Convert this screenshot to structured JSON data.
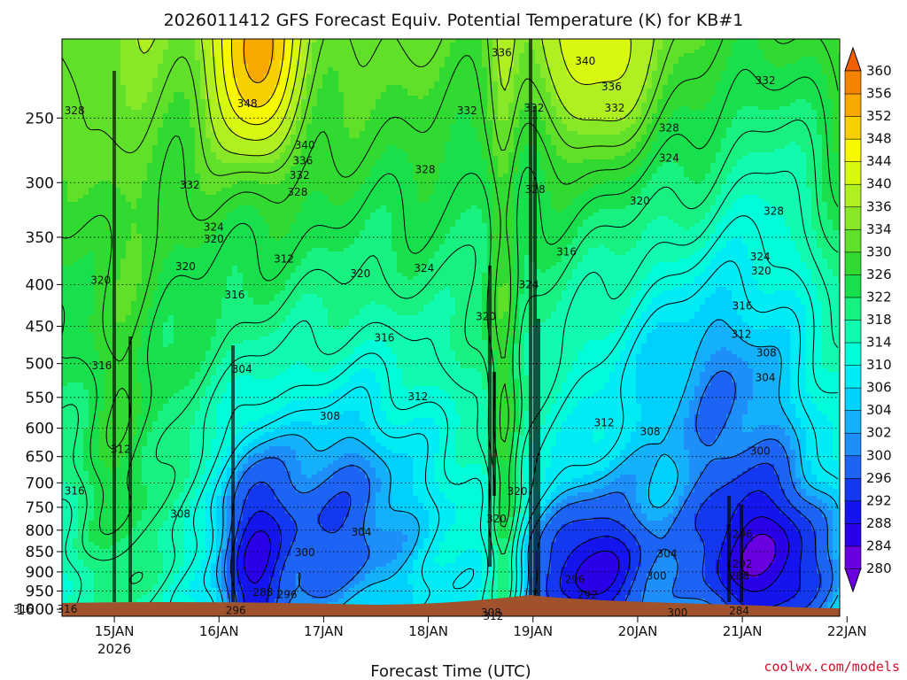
{
  "chart_data": {
    "type": "heatmap",
    "title": "2026011412 GFS Forecast Equiv. Potential Temperature (K) for KB#1",
    "xlabel": "Forecast Time (UTC)",
    "ylabel": "",
    "credit": "coolwx.com/models",
    "x_ticks": [
      {
        "label": "15JAN",
        "sub": "2026",
        "t": 1
      },
      {
        "label": "16JAN",
        "sub": "",
        "t": 2
      },
      {
        "label": "17JAN",
        "sub": "",
        "t": 3
      },
      {
        "label": "18JAN",
        "sub": "",
        "t": 4
      },
      {
        "label": "19JAN",
        "sub": "",
        "t": 5
      },
      {
        "label": "20JAN",
        "sub": "",
        "t": 6
      },
      {
        "label": "21JAN",
        "sub": "",
        "t": 7
      },
      {
        "label": "22JAN",
        "sub": "",
        "t": 8
      }
    ],
    "xlim": [
      0.5,
      7.93
    ],
    "y_ticks": [
      250,
      300,
      350,
      400,
      450,
      500,
      550,
      600,
      650,
      700,
      750,
      800,
      850,
      900,
      950,
      1000
    ],
    "ylim": [
      1020,
      200
    ],
    "y_scale": "log-pressure",
    "grid": "dotted",
    "colorbar": {
      "levels": [
        280,
        284,
        288,
        292,
        296,
        300,
        302,
        304,
        306,
        310,
        314,
        318,
        322,
        326,
        330,
        334,
        336,
        340,
        344,
        348,
        352,
        356,
        360
      ],
      "colors": [
        "#6a00e0",
        "#2a00e8",
        "#1414ee",
        "#1438f0",
        "#1e64f4",
        "#1e8ef8",
        "#14b0fa",
        "#00d0fc",
        "#00ecf4",
        "#00fcd8",
        "#10fab0",
        "#18f080",
        "#18e04c",
        "#30da30",
        "#60e028",
        "#88e828",
        "#b0f020",
        "#d8f810",
        "#f8f800",
        "#f8d000",
        "#f8a800",
        "#f48400",
        "#f06000"
      ]
    },
    "contour_labels": [
      {
        "v": "328",
        "t": 0.62,
        "p": 245
      },
      {
        "v": "348",
        "t": 2.27,
        "p": 240
      },
      {
        "v": "340",
        "t": 2.82,
        "p": 270
      },
      {
        "v": "336",
        "t": 2.8,
        "p": 282
      },
      {
        "v": "332",
        "t": 2.77,
        "p": 294
      },
      {
        "v": "328",
        "t": 2.75,
        "p": 308
      },
      {
        "v": "332",
        "t": 1.72,
        "p": 302
      },
      {
        "v": "324",
        "t": 1.95,
        "p": 340
      },
      {
        "v": "320",
        "t": 1.95,
        "p": 352
      },
      {
        "v": "320",
        "t": 1.68,
        "p": 380
      },
      {
        "v": "320",
        "t": 0.87,
        "p": 395
      },
      {
        "v": "312",
        "t": 2.62,
        "p": 372
      },
      {
        "v": "316",
        "t": 2.15,
        "p": 412
      },
      {
        "v": "320",
        "t": 3.35,
        "p": 388
      },
      {
        "v": "324",
        "t": 3.96,
        "p": 382
      },
      {
        "v": "328",
        "t": 3.97,
        "p": 289
      },
      {
        "v": "332",
        "t": 4.37,
        "p": 245
      },
      {
        "v": "336",
        "t": 4.7,
        "p": 208
      },
      {
        "v": "332",
        "t": 5.01,
        "p": 243
      },
      {
        "v": "328",
        "t": 5.02,
        "p": 306
      },
      {
        "v": "340",
        "t": 5.5,
        "p": 213
      },
      {
        "v": "336",
        "t": 5.75,
        "p": 229
      },
      {
        "v": "332",
        "t": 5.78,
        "p": 243
      },
      {
        "v": "328",
        "t": 6.3,
        "p": 257
      },
      {
        "v": "324",
        "t": 6.3,
        "p": 280
      },
      {
        "v": "320",
        "t": 6.02,
        "p": 316
      },
      {
        "v": "316",
        "t": 5.32,
        "p": 365
      },
      {
        "v": "332",
        "t": 7.22,
        "p": 225
      },
      {
        "v": "328",
        "t": 7.3,
        "p": 325
      },
      {
        "v": "324",
        "t": 7.17,
        "p": 370
      },
      {
        "v": "320",
        "t": 7.18,
        "p": 385
      },
      {
        "v": "324",
        "t": 4.96,
        "p": 400
      },
      {
        "v": "320",
        "t": 4.55,
        "p": 438
      },
      {
        "v": "316",
        "t": 3.58,
        "p": 465
      },
      {
        "v": "316",
        "t": 7.0,
        "p": 425
      },
      {
        "v": "312",
        "t": 6.99,
        "p": 460
      },
      {
        "v": "308",
        "t": 7.23,
        "p": 485
      },
      {
        "v": "304",
        "t": 7.22,
        "p": 520
      },
      {
        "v": "316",
        "t": 0.88,
        "p": 503
      },
      {
        "v": "304",
        "t": 2.22,
        "p": 508
      },
      {
        "v": "312",
        "t": 3.9,
        "p": 549
      },
      {
        "v": "308",
        "t": 3.06,
        "p": 580
      },
      {
        "v": "312",
        "t": 5.68,
        "p": 591
      },
      {
        "v": "308",
        "t": 6.12,
        "p": 606
      },
      {
        "v": "300",
        "t": 7.17,
        "p": 640
      },
      {
        "v": "312",
        "t": 1.06,
        "p": 637
      },
      {
        "v": "316",
        "t": 0.62,
        "p": 716
      },
      {
        "v": "308",
        "t": 1.63,
        "p": 764
      },
      {
        "v": "320",
        "t": 4.85,
        "p": 717
      },
      {
        "v": "320",
        "t": 4.65,
        "p": 775
      },
      {
        "v": "304",
        "t": 3.36,
        "p": 804
      },
      {
        "v": "300",
        "t": 2.82,
        "p": 852
      },
      {
        "v": "296",
        "t": 2.65,
        "p": 960
      },
      {
        "v": "288",
        "t": 2.42,
        "p": 953
      },
      {
        "v": "296",
        "t": 2.16,
        "p": 1003
      },
      {
        "v": "296",
        "t": 5.4,
        "p": 920
      },
      {
        "v": "292",
        "t": 5.52,
        "p": 961
      },
      {
        "v": "300",
        "t": 6.18,
        "p": 910
      },
      {
        "v": "304",
        "t": 6.28,
        "p": 855
      },
      {
        "v": "300",
        "t": 6.38,
        "p": 1010
      },
      {
        "v": "296",
        "t": 7.0,
        "p": 810
      },
      {
        "v": "292",
        "t": 7.0,
        "p": 880
      },
      {
        "v": "288",
        "t": 6.97,
        "p": 910
      },
      {
        "v": "284",
        "t": 6.97,
        "p": 1005
      },
      {
        "v": "316",
        "t": 0.13,
        "p": 1000
      },
      {
        "v": "316",
        "t": 0.55,
        "p": 1000
      },
      {
        "v": "308",
        "t": 4.6,
        "p": 1010
      },
      {
        "v": "312",
        "t": 4.62,
        "p": 1020
      }
    ]
  }
}
